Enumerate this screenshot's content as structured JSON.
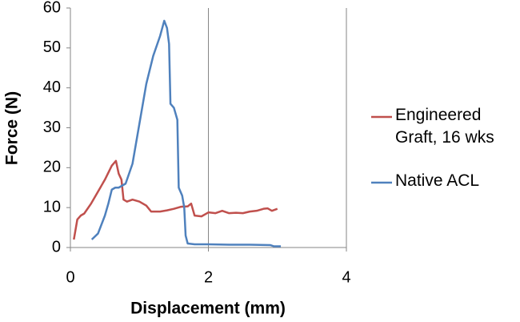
{
  "chart_data": {
    "type": "line",
    "x_label": "Displacement (mm)",
    "y_label": "Force (N)",
    "xlim": [
      0,
      4
    ],
    "xticks": [
      0,
      2,
      4
    ],
    "ylim": [
      0,
      60
    ],
    "yticks": [
      0,
      10,
      20,
      30,
      40,
      50,
      60
    ],
    "grid": "x",
    "legend": "right",
    "series": [
      {
        "name": "Engineered Graft, 16 wks",
        "color": "#c0504d",
        "x": [
          0.05,
          0.1,
          0.15,
          0.2,
          0.3,
          0.4,
          0.5,
          0.6,
          0.66,
          0.7,
          0.74,
          0.77,
          0.82,
          0.9,
          1.0,
          1.1,
          1.17,
          1.3,
          1.4,
          1.5,
          1.6,
          1.7,
          1.75,
          1.8,
          1.9,
          2.0,
          2.1,
          2.2,
          2.3,
          2.4,
          2.5,
          2.6,
          2.7,
          2.8,
          2.86,
          2.92,
          3.0
        ],
        "values": [
          2,
          7,
          8,
          8.5,
          11,
          14,
          17,
          20.5,
          21.7,
          18.5,
          17,
          12,
          11.5,
          12,
          11.5,
          10.5,
          9,
          9,
          9.3,
          9.7,
          10.2,
          10.3,
          11,
          8,
          7.8,
          8.8,
          8.6,
          9.2,
          8.6,
          8.7,
          8.6,
          9,
          9.2,
          9.7,
          9.8,
          9.2,
          9.7
        ]
      },
      {
        "name": "Native ACL",
        "color": "#4f81bd",
        "x": [
          0.31,
          0.4,
          0.5,
          0.55,
          0.6,
          0.65,
          0.7,
          0.8,
          0.9,
          1.0,
          1.1,
          1.2,
          1.3,
          1.36,
          1.4,
          1.43,
          1.45,
          1.5,
          1.55,
          1.57,
          1.62,
          1.65,
          1.67,
          1.7,
          1.8,
          2.0,
          2.3,
          2.6,
          2.9,
          2.95,
          3.05
        ],
        "values": [
          2,
          3.5,
          8,
          11,
          14.5,
          15,
          15,
          16,
          21,
          31,
          41,
          48,
          53,
          56.8,
          55,
          51,
          36,
          35,
          32,
          15,
          13,
          10,
          3,
          1,
          0.8,
          0.8,
          0.7,
          0.7,
          0.6,
          0.3,
          0.3
        ]
      }
    ]
  }
}
